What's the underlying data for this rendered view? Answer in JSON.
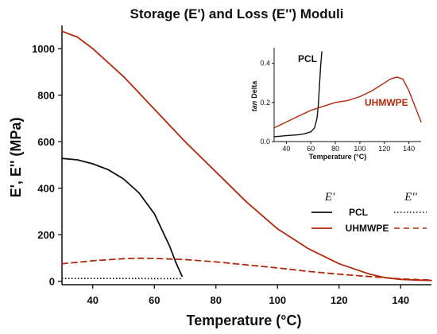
{
  "chart_data": [
    {
      "type": "line",
      "title": "Storage (E') and Loss (E'') Moduli",
      "xlabel": "Temperature (°C)",
      "ylabel": "E', E'' (MPa)",
      "xlim": [
        30,
        150
      ],
      "ylim": [
        -15,
        1100
      ],
      "xticks": [
        40,
        60,
        80,
        100,
        120,
        140
      ],
      "yticks": [
        0,
        200,
        400,
        600,
        800,
        1000
      ],
      "grid": false,
      "legend": {
        "placement": "lower-right",
        "header_storage": "E'",
        "header_loss": "E''",
        "rows": [
          "PCL",
          "UHMWPE"
        ]
      },
      "series": [
        {
          "material": "PCL",
          "modulus": "storage",
          "color": "#111111",
          "dash": "solid",
          "x": [
            30,
            35,
            40,
            45,
            50,
            55,
            60,
            65,
            67,
            69
          ],
          "y": [
            528,
            522,
            505,
            480,
            440,
            380,
            290,
            150,
            80,
            22
          ]
        },
        {
          "material": "PCL",
          "modulus": "loss",
          "color": "#111111",
          "dash": "dotted",
          "x": [
            30,
            40,
            50,
            60,
            69
          ],
          "y": [
            12,
            12,
            12,
            11,
            11
          ]
        },
        {
          "material": "UHMWPE",
          "modulus": "storage",
          "color": "#b02a0c",
          "dash": "solid",
          "x": [
            30,
            35,
            40,
            50,
            60,
            70,
            80,
            90,
            100,
            110,
            120,
            130,
            135,
            140,
            145,
            150
          ],
          "y": [
            1075,
            1050,
            1000,
            880,
            740,
            600,
            470,
            340,
            225,
            140,
            75,
            30,
            15,
            8,
            5,
            3
          ]
        },
        {
          "material": "UHMWPE",
          "modulus": "loss",
          "color": "#b02a0c",
          "dash": "dashed",
          "x": [
            30,
            40,
            50,
            55,
            60,
            70,
            80,
            90,
            100,
            110,
            120,
            130,
            140,
            150
          ],
          "y": [
            75,
            88,
            97,
            99,
            98,
            93,
            83,
            70,
            57,
            42,
            30,
            20,
            10,
            5
          ]
        }
      ]
    },
    {
      "type": "line",
      "title": "",
      "xlabel": "Temperature (°C)",
      "ylabel_prefix": "tan",
      "ylabel_suffix": "Delta",
      "xlim": [
        30,
        150
      ],
      "ylim": [
        0,
        0.48
      ],
      "xticks": [
        40,
        60,
        80,
        100,
        120,
        140
      ],
      "yticks": [
        0.0,
        0.2,
        0.4
      ],
      "grid": false,
      "series": [
        {
          "label": "PCL",
          "color": "#111111",
          "x": [
            30,
            40,
            50,
            55,
            60,
            63,
            65,
            66,
            67,
            68,
            69
          ],
          "y": [
            0.025,
            0.03,
            0.035,
            0.04,
            0.05,
            0.07,
            0.12,
            0.18,
            0.28,
            0.39,
            0.46
          ]
        },
        {
          "label": "UHMWPE",
          "color": "#b02a0c",
          "x": [
            30,
            40,
            50,
            60,
            70,
            80,
            90,
            100,
            110,
            120,
            125,
            130,
            135,
            140,
            145,
            150
          ],
          "y": [
            0.07,
            0.1,
            0.13,
            0.16,
            0.18,
            0.2,
            0.21,
            0.23,
            0.26,
            0.3,
            0.32,
            0.33,
            0.32,
            0.26,
            0.18,
            0.1
          ]
        }
      ]
    }
  ]
}
